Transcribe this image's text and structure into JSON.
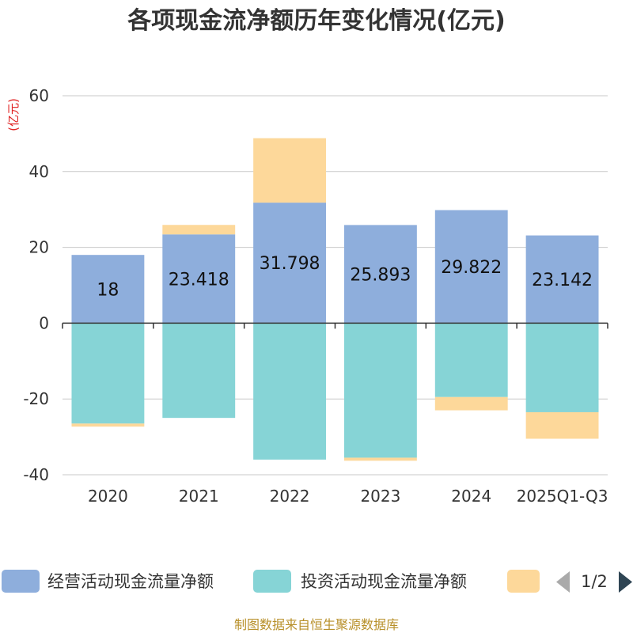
{
  "chart_data": {
    "type": "bar",
    "stacked": true,
    "title": "各项现金流净额历年变化情况(亿元)",
    "ylabel": "(亿元)",
    "xlabel": "",
    "ylim": [
      -40,
      60
    ],
    "yticks": [
      60,
      40,
      20,
      0,
      -20,
      -40
    ],
    "grid": true,
    "categories": [
      "2020",
      "2021",
      "2022",
      "2023",
      "2024",
      "2025Q1-Q3"
    ],
    "series": [
      {
        "name": "经营活动现金流量净额",
        "color": "#8eaedc",
        "values": [
          18,
          23.418,
          31.798,
          25.893,
          29.822,
          23.142
        ],
        "labels": [
          "18",
          "23.418",
          "31.798",
          "25.893",
          "29.822",
          "23.142"
        ]
      },
      {
        "name": "投资活动现金流量净额",
        "color": "#86d4d6",
        "values": [
          -26.5,
          -25,
          -36,
          -35.5,
          -19.5,
          -23.5
        ]
      },
      {
        "name": "",
        "color": "#fdd89a",
        "values": [
          -0.8,
          2.5,
          17,
          -0.8,
          -3.5,
          -7
        ]
      }
    ]
  },
  "legend": {
    "items": [
      {
        "label": "经营活动现金流量净额",
        "color": "#8eaedc"
      },
      {
        "label": "投资活动现金流量净额",
        "color": "#86d4d6"
      },
      {
        "label": "",
        "color": "#fdd89a"
      }
    ],
    "page": "1/2",
    "prev_icon": "triangle-left-icon",
    "next_icon": "triangle-right-icon"
  },
  "footer": {
    "source": "制图数据来自恒生聚源数据库"
  }
}
